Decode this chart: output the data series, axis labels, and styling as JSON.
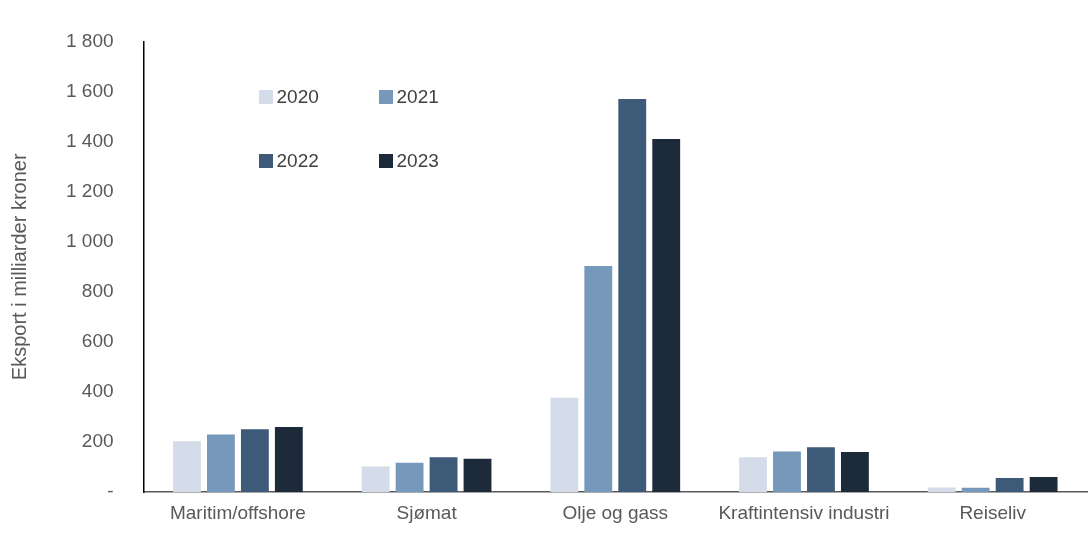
{
  "chart_data": {
    "type": "bar",
    "ylabel": "Eksport i milliarder kroner",
    "categories": [
      "Maritim/offshore",
      "Sjømat",
      "Olje og gass",
      "Kraftintensiv industri",
      "Reiseliv"
    ],
    "series": [
      {
        "name": "2020",
        "color": "#d3dce8",
        "values": [
          203,
          103,
          377,
          140,
          19
        ]
      },
      {
        "name": "2021",
        "color": "#7698bb",
        "values": [
          230,
          118,
          903,
          163,
          18
        ]
      },
      {
        "name": "2022",
        "color": "#3d5a78",
        "values": [
          251,
          140,
          1570,
          179,
          57
        ]
      },
      {
        "name": "2023",
        "color": "#1c2a3a",
        "values": [
          260,
          134,
          1410,
          161,
          61
        ]
      }
    ],
    "ylim": [
      0,
      1800
    ],
    "yticks": [
      {
        "value": 0,
        "label": "-"
      },
      {
        "value": 200,
        "label": "200"
      },
      {
        "value": 400,
        "label": "400"
      },
      {
        "value": 600,
        "label": "600"
      },
      {
        "value": 800,
        "label": "800"
      },
      {
        "value": 1000,
        "label": "1 000"
      },
      {
        "value": 1200,
        "label": "1 200"
      },
      {
        "value": 1400,
        "label": "1 400"
      },
      {
        "value": 1600,
        "label": "1 600"
      },
      {
        "value": 1800,
        "label": "1 800"
      }
    ],
    "grid": false,
    "legend": "top left"
  }
}
